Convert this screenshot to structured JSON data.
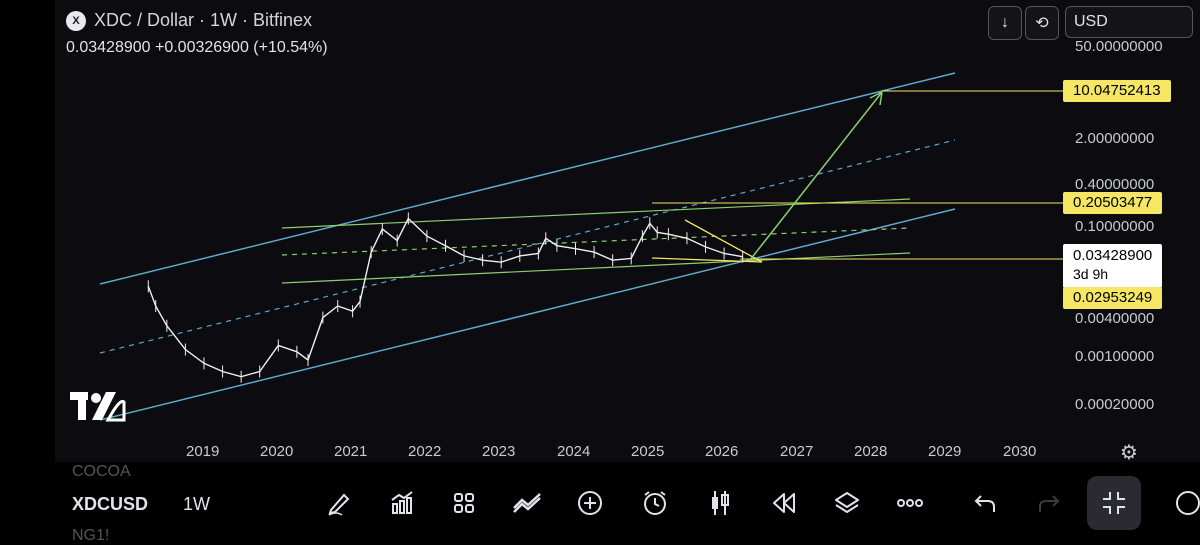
{
  "header": {
    "logo_text": "X",
    "title": "XDC / Dollar · 1W · Bitfinex",
    "quote": "0.03428900  +0.00326900 (+10.54%)",
    "currency": "USD"
  },
  "price_axis": {
    "labels": [
      "50.00000000",
      "2.00000000",
      "0.40000000",
      "0.10000000",
      "0.00400000",
      "0.00100000",
      "0.00020000"
    ]
  },
  "price_tags": [
    {
      "text": "10.04752413",
      "color": "#f5e663",
      "text_color": "#000"
    },
    {
      "text": "0.20503477",
      "color": "#f5e663",
      "text_color": "#000"
    },
    {
      "text": "0.03428900",
      "color": "#ffffff",
      "text_color": "#000"
    },
    {
      "text": "3d 9h",
      "color": "#ffffff",
      "text_color": "#000"
    },
    {
      "text": "0.02953249",
      "color": "#f5e663",
      "text_color": "#000"
    }
  ],
  "time_axis": {
    "years": [
      "2019",
      "2020",
      "2021",
      "2022",
      "2023",
      "2024",
      "2025",
      "2026",
      "2027",
      "2028",
      "2029",
      "2030"
    ]
  },
  "chart_data": {
    "type": "line",
    "title": "XDC / Dollar · 1W · Bitfinex",
    "y_scale": "log",
    "series": [
      {
        "x": [
          2018.25,
          2018.35,
          2018.5,
          2018.75,
          2019.0,
          2019.25,
          2019.5,
          2019.75,
          2020.0,
          2020.25,
          2020.4,
          2020.6,
          2020.8,
          2021.0,
          2021.1,
          2021.25,
          2021.4,
          2021.6,
          2021.75,
          2022.0,
          2022.25,
          2022.5,
          2022.75,
          2023.0,
          2023.25,
          2023.5,
          2023.6,
          2023.75,
          2024.0,
          2024.25,
          2024.5,
          2024.75,
          2024.9,
          2025.0,
          2025.1,
          2025.25,
          2025.5,
          2025.75,
          2026.0,
          2026.25
        ],
        "values": [
          0.012,
          0.006,
          0.003,
          0.0013,
          0.0008,
          0.0006,
          0.0005,
          0.0006,
          0.0015,
          0.0012,
          0.0009,
          0.004,
          0.006,
          0.005,
          0.007,
          0.04,
          0.09,
          0.06,
          0.13,
          0.07,
          0.05,
          0.035,
          0.03,
          0.028,
          0.035,
          0.038,
          0.065,
          0.05,
          0.045,
          0.04,
          0.03,
          0.032,
          0.07,
          0.11,
          0.08,
          0.075,
          0.065,
          0.048,
          0.038,
          0.034
        ]
      }
    ],
    "annotations": [
      "10.04752413",
      "0.20503477",
      "0.03428900",
      "0.02953249"
    ]
  },
  "bottom": {
    "symbol": "XDCUSD",
    "interval": "1W",
    "ghost_above": "COCOA",
    "ghost_below": "NG1!"
  },
  "toolbar_icons": [
    "draw-icon",
    "indicators-icon",
    "grid-icon",
    "compare-icon",
    "add-icon",
    "alert-icon",
    "candles-icon",
    "replay-icon",
    "layers-icon",
    "more-icon",
    "undo-icon",
    "redo-icon",
    "fullscreen-icon"
  ]
}
